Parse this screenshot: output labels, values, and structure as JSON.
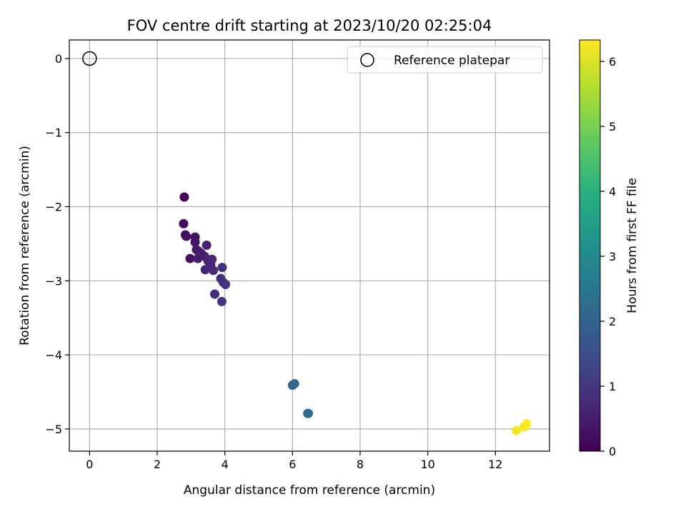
{
  "chart_data": {
    "type": "scatter",
    "title": "FOV centre drift starting at 2023/10/20 02:25:04",
    "xlabel": "Angular distance from reference (arcmin)",
    "ylabel": "Rotation from reference (arcmin)",
    "xlim": [
      -0.6,
      13.6
    ],
    "ylim": [
      -5.3,
      0.25
    ],
    "xticks": [
      0,
      2,
      4,
      6,
      8,
      10,
      12
    ],
    "yticks": [
      0,
      -1,
      -2,
      -3,
      -4,
      -5
    ],
    "grid": true,
    "legend": {
      "position": "top-right",
      "entries": [
        "Reference platepar"
      ]
    },
    "reference_point": {
      "name": "Reference platepar",
      "x": 0,
      "y": 0
    },
    "colorbar": {
      "label": "Hours from first FF file",
      "colormap": "viridis",
      "min": 0,
      "max": 6.33,
      "ticks": [
        0,
        1,
        2,
        3,
        4,
        5,
        6
      ]
    },
    "points": [
      {
        "x": 2.8,
        "y": -1.87,
        "c": 0.1
      },
      {
        "x": 2.78,
        "y": -2.23,
        "c": 0.15
      },
      {
        "x": 2.83,
        "y": -2.38,
        "c": 0.2
      },
      {
        "x": 2.86,
        "y": -2.4,
        "c": 0.22
      },
      {
        "x": 3.12,
        "y": -2.41,
        "c": 0.3
      },
      {
        "x": 3.12,
        "y": -2.48,
        "c": 0.35
      },
      {
        "x": 3.16,
        "y": -2.58,
        "c": 0.4
      },
      {
        "x": 3.22,
        "y": -2.6,
        "c": 0.45
      },
      {
        "x": 3.3,
        "y": -2.63,
        "c": 0.5
      },
      {
        "x": 2.97,
        "y": -2.7,
        "c": 0.25
      },
      {
        "x": 3.2,
        "y": -2.7,
        "c": 0.5
      },
      {
        "x": 3.4,
        "y": -2.67,
        "c": 0.55
      },
      {
        "x": 3.46,
        "y": -2.52,
        "c": 0.6
      },
      {
        "x": 3.5,
        "y": -2.73,
        "c": 0.65
      },
      {
        "x": 3.58,
        "y": -2.78,
        "c": 0.7
      },
      {
        "x": 3.62,
        "y": -2.71,
        "c": 0.7
      },
      {
        "x": 3.42,
        "y": -2.85,
        "c": 0.65
      },
      {
        "x": 3.66,
        "y": -2.86,
        "c": 0.75
      },
      {
        "x": 3.92,
        "y": -2.82,
        "c": 0.85
      },
      {
        "x": 3.88,
        "y": -2.97,
        "c": 0.85
      },
      {
        "x": 3.95,
        "y": -3.02,
        "c": 0.9
      },
      {
        "x": 4.02,
        "y": -3.05,
        "c": 0.95
      },
      {
        "x": 3.7,
        "y": -3.18,
        "c": 0.8
      },
      {
        "x": 3.91,
        "y": -3.28,
        "c": 0.9
      },
      {
        "x": 6.0,
        "y": -4.41,
        "c": 2.1
      },
      {
        "x": 6.06,
        "y": -4.39,
        "c": 2.15
      },
      {
        "x": 6.45,
        "y": -4.79,
        "c": 2.2
      },
      {
        "x": 6.47,
        "y": -4.79,
        "c": 2.25
      },
      {
        "x": 12.62,
        "y": -5.02,
        "c": 6.2
      },
      {
        "x": 12.85,
        "y": -4.97,
        "c": 6.25
      },
      {
        "x": 12.92,
        "y": -4.93,
        "c": 6.3
      }
    ]
  }
}
